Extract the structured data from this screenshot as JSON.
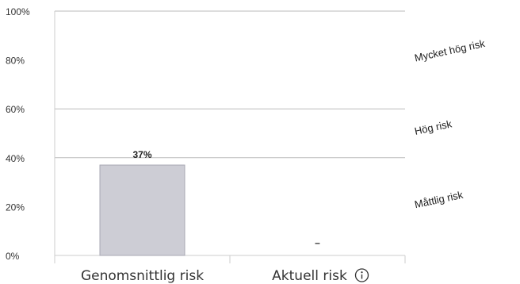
{
  "chart_data": {
    "type": "bar",
    "categories": [
      "Genomsnittlig risk",
      "Aktuell risk"
    ],
    "values": [
      37,
      null
    ],
    "value_labels": [
      "37%",
      "–"
    ],
    "ylim": [
      0,
      100
    ],
    "yticks": [
      0,
      20,
      40,
      60,
      80,
      100
    ],
    "ytick_labels": [
      "0%",
      "20%",
      "40%",
      "60%",
      "80%",
      "100%"
    ],
    "risk_zones": [
      {
        "label": "Måttlig risk",
        "range": [
          0,
          40
        ]
      },
      {
        "label": "Hög risk",
        "range": [
          40,
          60
        ]
      },
      {
        "label": "Mycket hög risk",
        "range": [
          60,
          100
        ]
      }
    ],
    "zone_boundaries": [
      40,
      60,
      100
    ],
    "info_icon": "info-icon",
    "colors": {
      "bar_fill": "#cdcdd5",
      "bar_stroke": "#a8a8b3",
      "grid": "#bbbbbb",
      "axis": "#cccccc",
      "text": "#333333"
    },
    "grid": true
  }
}
